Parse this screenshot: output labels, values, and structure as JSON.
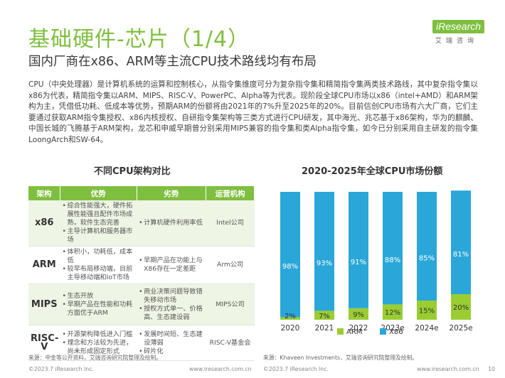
{
  "header": {
    "title": "基础硬件-芯片（1/4）",
    "subtitle": "国内厂商在x86、ARM等主流CPU技术路线均有布局",
    "logo_text": "iResearch",
    "logo_sub": "艾瑞咨询"
  },
  "paragraph": "CPU（中央处理器）是计算机系统的运算和控制核心，从指令集维度可分为复杂指令集和精简指令集两类技术路线，其中复杂指令集以x86为代表，精简指令集以ARM、MIPS、RISC-V、PowerPC、Alpha等为代表。现阶段全球CPU市场以x86（intel+AMD）和ARM架构为主，凭借低功耗、低成本等优势，预期ARM的份额将由2021年的7%升至2025年的20%。目前信创CPU市场有六大厂商，它们主要通过获取ARM指令集授权、x86内核授权、自研指令集架构等三类方式进行CPU研发，其中海光、兆芯基于x86架构，华为的麒麟、中国长城的飞腾基于ARM架构，龙芯和申威早期曾分别采用MIPS兼容的指令集和类Alpha指令集，如今已分别采用自主研发的指令集LoongArch和SW-64。",
  "table": {
    "title": "不同CPU架构对比",
    "headers": [
      "架构",
      "优势",
      "劣势",
      "运营机构"
    ],
    "rows": [
      {
        "arch": "x86",
        "adv": [
          "综合性能强大，硬件拓展性能强且配件市场成熟，软件生态完善",
          "主导计算机和服务器市场"
        ],
        "dis": [
          "计算机硬件利用率低"
        ],
        "org": "Intel公司"
      },
      {
        "arch": "ARM",
        "adv": [
          "体积小，功耗低，成本低",
          "较早布局移动端，目前主导移动端和IoT市场"
        ],
        "dis": [
          "早期产品在功能上与X86存在一定差距"
        ],
        "org": "Arm公司"
      },
      {
        "arch": "MIPS",
        "adv": [
          "生态开放",
          "早期产品在性能和功耗方面优于ARM"
        ],
        "dis": [
          "商业决策问题导致错失移动市场",
          "授权方式单一、价格高、生态建设弱"
        ],
        "org": "MIPS公司"
      },
      {
        "arch": "RISC-V",
        "adv": [
          "开源架构降低进入门槛",
          "理念和方法较为先进，尚未形成固定形式"
        ],
        "dis": [
          "发展时间短、生态建设薄弱",
          "碎片化"
        ],
        "org": "RISC-V基金会"
      }
    ]
  },
  "chart_title": "2020-2025年全球CPU市场份额",
  "chart_data": {
    "type": "bar",
    "stacked": true,
    "percent": true,
    "categories": [
      "2020",
      "2021",
      "2022",
      "2023e",
      "2024e",
      "2025e"
    ],
    "series": [
      {
        "name": "ARM",
        "values": [
          2,
          7,
          9,
          12,
          15,
          20
        ],
        "color": "#9acd32"
      },
      {
        "name": "X86",
        "values": [
          98,
          93,
          91,
          88,
          85,
          81
        ],
        "color": "#2aa7d8"
      }
    ],
    "labels": {
      "ARM": [
        "2%",
        "7%",
        "9%",
        "12%",
        "15%",
        "20%"
      ],
      "X86": [
        "98%",
        "93%",
        "91%",
        "88%",
        "85%",
        "81%"
      ]
    },
    "legend": "bottom",
    "ylim": [
      0,
      100
    ]
  },
  "source_left": "来源：中金等公开资料，艾瑞咨询研究院整理及绘制。",
  "source_right": "来源：Khaveen Investments，艾瑞咨询研究院整理及绘制。",
  "footer": {
    "copy_left": "©2023.7 iResearch Inc.",
    "url_left": "www.iresearch.com.cn",
    "copy_right": "©2023.7 iResearch Inc.",
    "url_right": "www.iresearch.com.cn",
    "page": "10"
  }
}
